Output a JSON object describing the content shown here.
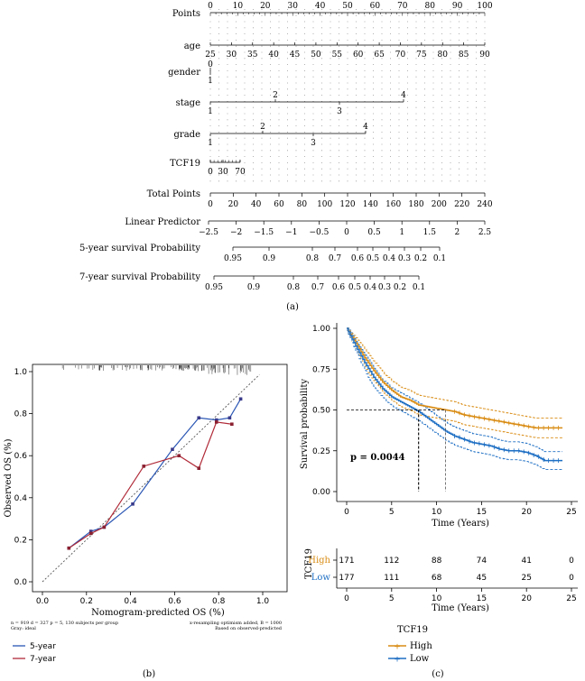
{
  "nomogram": {
    "caption": "(a)",
    "rows": [
      {
        "label": "Points",
        "ticks": [
          "0",
          "10",
          "20",
          "30",
          "40",
          "50",
          "60",
          "70",
          "80",
          "90",
          "100"
        ],
        "ticks_lower": [],
        "ticks_upper": []
      },
      {
        "label": "age",
        "ticks": [
          "25",
          "30",
          "35",
          "40",
          "45",
          "50",
          "55",
          "60",
          "65",
          "70",
          "75",
          "80",
          "85",
          "90"
        ],
        "ticks_lower": [],
        "ticks_upper": []
      },
      {
        "label": "gender",
        "ticks": [
          "0",
          "1"
        ],
        "ticks_lower": [],
        "ticks_upper": []
      },
      {
        "label": "stage",
        "ticks": [],
        "ticks_lower": [
          "1",
          "3"
        ],
        "ticks_upper": [
          "2",
          "4"
        ]
      },
      {
        "label": "grade",
        "ticks": [],
        "ticks_lower": [
          "1",
          "3"
        ],
        "ticks_upper": [
          "2",
          "4"
        ]
      },
      {
        "label": "TCF19",
        "ticks": [
          "0",
          "30",
          "70"
        ],
        "ticks_lower": [],
        "ticks_upper": []
      },
      {
        "label": "Total Points",
        "ticks": [
          "0",
          "20",
          "40",
          "60",
          "80",
          "100",
          "120",
          "140",
          "160",
          "180",
          "200",
          "220",
          "240"
        ],
        "ticks_lower": [],
        "ticks_upper": []
      },
      {
        "label": "Linear Predictor",
        "ticks": [
          "−2.5",
          "−2",
          "−1.5",
          "−1",
          "−0.5",
          "0",
          "0.5",
          "1",
          "1.5",
          "2",
          "2.5"
        ],
        "ticks_lower": [],
        "ticks_upper": []
      },
      {
        "label": "5-year survival Probability",
        "ticks": [
          "0.95",
          "0.9",
          "0.8",
          "0.7",
          "0.6",
          "0.5",
          "0.4",
          "0.3",
          "0.2",
          "0.1"
        ],
        "ticks_lower": [],
        "ticks_upper": []
      },
      {
        "label": "7-year survival Probability",
        "ticks": [
          "0.95",
          "0.9",
          "0.8",
          "0.7",
          "0.6",
          "0.5",
          "0.4",
          "0.3",
          "0.2",
          "0.1"
        ],
        "ticks_lower": [],
        "ticks_upper": []
      }
    ]
  },
  "calibration": {
    "caption": "(b)",
    "note_left_1": "n = 919 d = 327 p = 5, 130 subjects per group",
    "note_left_2": "Gray: ideal",
    "note_right_1": "x-resampling optimism added, B = 1000",
    "note_right_2": "Based on observed-predicted",
    "legend": [
      "5-year",
      "7-year"
    ]
  },
  "km": {
    "caption": "(c)",
    "pvalue": "p = 0.0044",
    "risk_title": "TCF19",
    "risk_rows": [
      {
        "name": "High",
        "counts": [
          "171",
          "112",
          "88",
          "74",
          "41",
          "0"
        ]
      },
      {
        "name": "Low",
        "counts": [
          "177",
          "111",
          "68",
          "45",
          "25",
          "0"
        ]
      }
    ],
    "legend_title": "TCF19",
    "legend": [
      "High",
      "Low"
    ]
  },
  "colors": {
    "blue": "#2a56b4",
    "red": "#b02a38",
    "orange": "#d98c14",
    "kmblue": "#1e6fc4"
  },
  "chart_data": [
    {
      "type": "line",
      "title": "",
      "xlabel": "Nomogram-predicted OS (%)",
      "ylabel": "Observed OS (%)",
      "xlim": [
        0.0,
        1.0
      ],
      "ylim": [
        0.0,
        1.0
      ],
      "xticks": [
        "0.0",
        "0.2",
        "0.4",
        "0.6",
        "0.8",
        "1.0"
      ],
      "yticks": [
        "0.0",
        "0.2",
        "0.4",
        "0.6",
        "0.8",
        "1.0"
      ],
      "ideal_line": [
        [
          0,
          0
        ],
        [
          1,
          1
        ]
      ],
      "series": [
        {
          "name": "5-year",
          "x": [
            0.12,
            0.22,
            0.28,
            0.41,
            0.59,
            0.71,
            0.79,
            0.85,
            0.9
          ],
          "y": [
            0.16,
            0.24,
            0.26,
            0.37,
            0.63,
            0.78,
            0.77,
            0.78,
            0.87
          ]
        },
        {
          "name": "7-year",
          "x": [
            0.12,
            0.22,
            0.28,
            0.46,
            0.62,
            0.71,
            0.79,
            0.86
          ],
          "y": [
            0.16,
            0.23,
            0.26,
            0.55,
            0.6,
            0.54,
            0.76,
            0.75
          ]
        }
      ]
    },
    {
      "type": "line",
      "title": "",
      "xlabel": "Time (Years)",
      "ylabel": "Survival probability",
      "xlim": [
        0,
        25
      ],
      "ylim": [
        0,
        1
      ],
      "xticks": [
        "0",
        "5",
        "10",
        "15",
        "20",
        "25"
      ],
      "yticks": [
        "0.00",
        "0.25",
        "0.50",
        "0.75",
        "1.00"
      ],
      "median_survival": {
        "Low": 8,
        "High": 11
      },
      "series": [
        {
          "name": "High",
          "x": [
            0,
            1,
            2,
            3,
            4,
            5,
            6,
            7,
            8,
            9,
            10,
            11,
            12,
            13,
            14,
            15,
            16,
            17,
            18,
            19,
            20,
            21,
            22,
            23,
            24
          ],
          "y": [
            1.0,
            0.91,
            0.82,
            0.74,
            0.67,
            0.62,
            0.58,
            0.56,
            0.53,
            0.52,
            0.51,
            0.5,
            0.49,
            0.47,
            0.46,
            0.45,
            0.44,
            0.43,
            0.42,
            0.41,
            0.4,
            0.39,
            0.39,
            0.39,
            0.39
          ]
        },
        {
          "name": "Low",
          "x": [
            0,
            1,
            2,
            3,
            4,
            5,
            6,
            7,
            8,
            9,
            10,
            11,
            12,
            13,
            14,
            15,
            16,
            17,
            18,
            19,
            20,
            21,
            22,
            23,
            24
          ],
          "y": [
            1.0,
            0.89,
            0.79,
            0.7,
            0.63,
            0.58,
            0.55,
            0.52,
            0.49,
            0.45,
            0.41,
            0.37,
            0.34,
            0.32,
            0.3,
            0.29,
            0.28,
            0.26,
            0.25,
            0.25,
            0.24,
            0.22,
            0.19,
            0.19,
            0.19
          ]
        }
      ]
    }
  ]
}
